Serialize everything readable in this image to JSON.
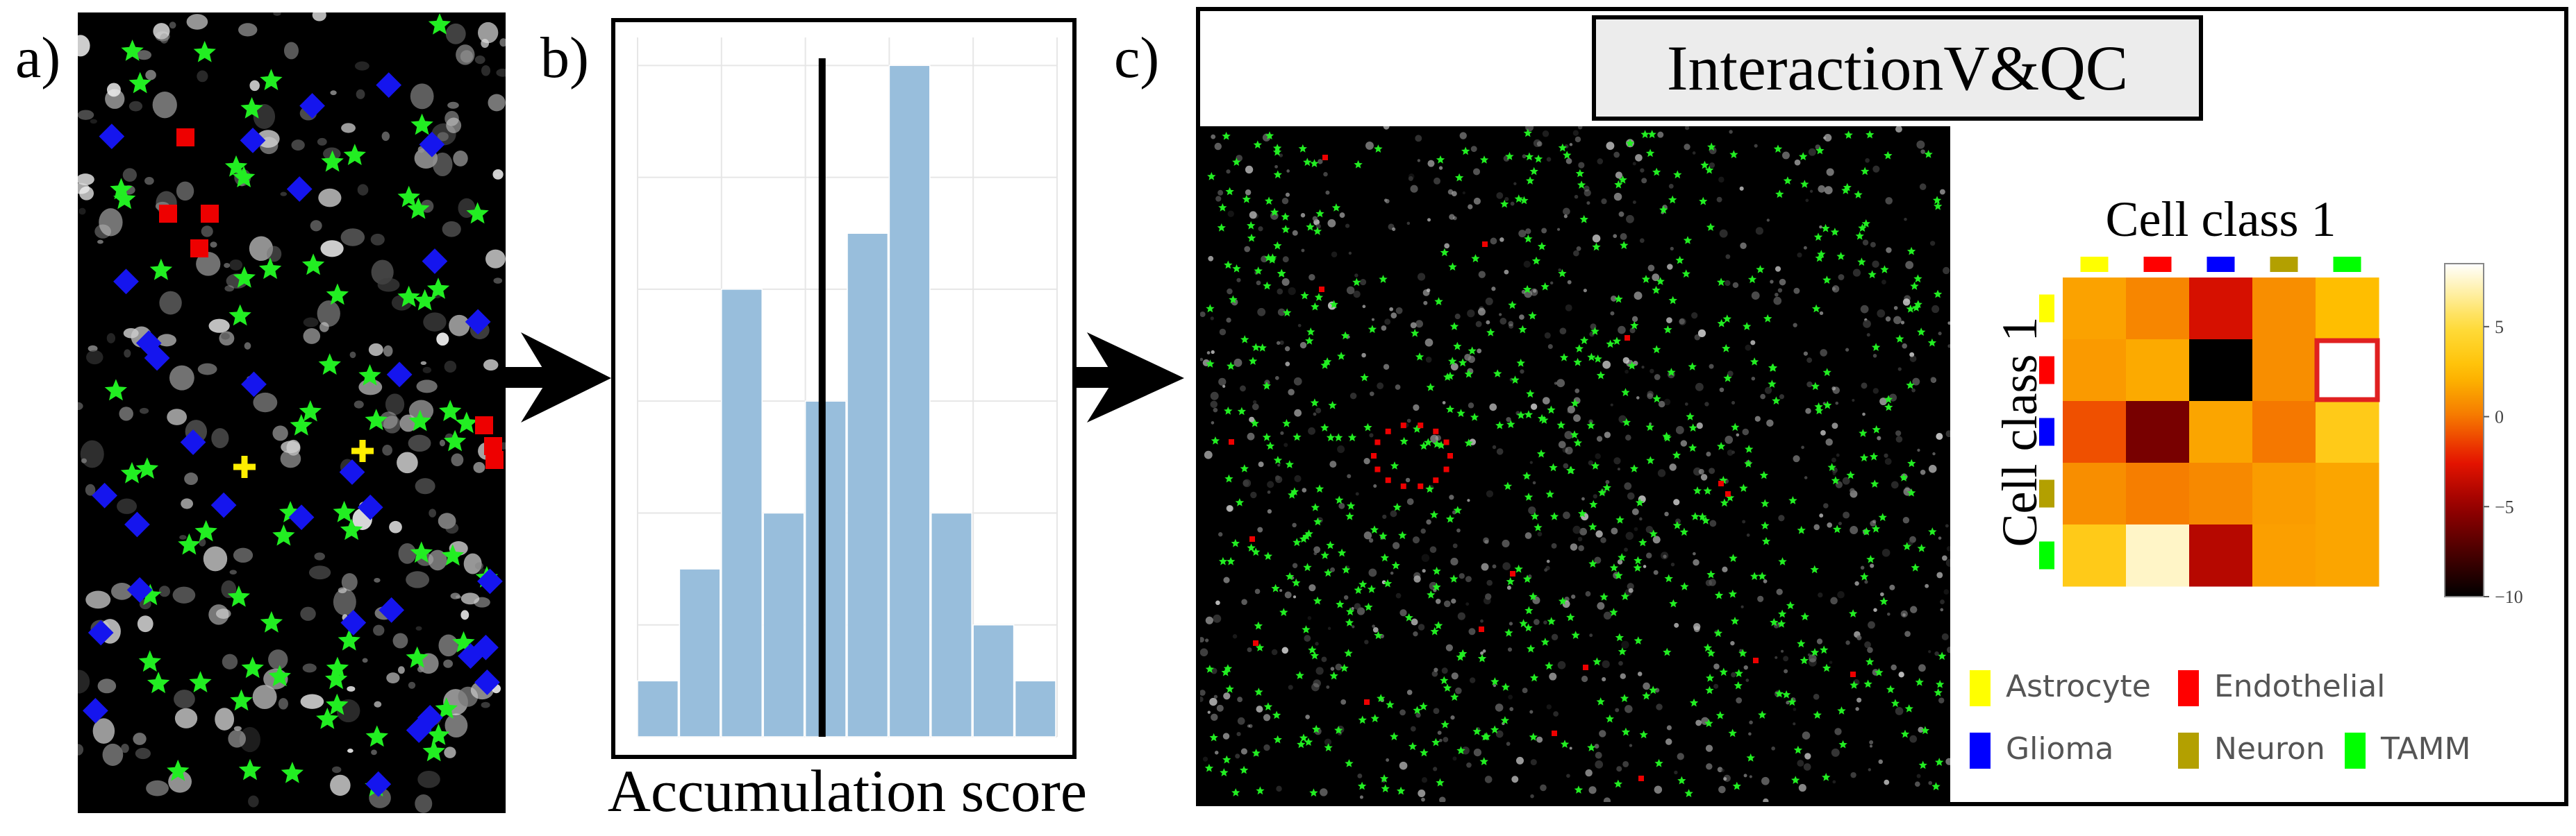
{
  "panels": {
    "a": {
      "label": "a)"
    },
    "b": {
      "label": "b)",
      "xlabel": "Accumulation score"
    },
    "c": {
      "label": "c)",
      "title": "InteractionV&QC"
    }
  },
  "chart_data": [
    {
      "type": "bar",
      "description_visible": "histogram",
      "xlabel": "Accumulation score",
      "values": [
        1,
        3,
        8,
        4,
        6,
        9,
        12,
        4,
        2,
        1
      ],
      "ylim": [
        0,
        12.5
      ],
      "vertical_line_bin": 4.4,
      "grid": true
    },
    {
      "type": "heatmap",
      "title": "Cell class 1",
      "ylabel": "Cell class 1",
      "rows": [
        "Astrocyte",
        "Endothelial",
        "Glioma",
        "Neuron",
        "TAMM"
      ],
      "cols": [
        "Astrocyte",
        "Endothelial",
        "Glioma",
        "Neuron",
        "TAMM"
      ],
      "values": [
        [
          1.5,
          0.5,
          -3.0,
          0.8,
          2.5
        ],
        [
          1.2,
          1.8,
          -10.0,
          0.8,
          8.5
        ],
        [
          -1.0,
          -6.0,
          1.6,
          0.0,
          3.5
        ],
        [
          0.8,
          0.2,
          0.6,
          1.3,
          1.6
        ],
        [
          3.5,
          7.5,
          -4.0,
          1.4,
          1.6
        ]
      ],
      "highlight_cell": [
        1,
        4
      ],
      "colorbar": {
        "min": -10,
        "max": 8.5,
        "ticks": [
          5,
          0,
          -5,
          -10
        ],
        "tick_labels": [
          "5",
          "0",
          "−5",
          "−10"
        ]
      }
    }
  ],
  "legend": [
    {
      "label": "Astrocyte",
      "color": "#ffff00"
    },
    {
      "label": "Endothelial",
      "color": "#ff0000"
    },
    {
      "label": "Glioma",
      "color": "#0000ff"
    },
    {
      "label": "Neuron",
      "color": "#b3a000"
    },
    {
      "label": "TAMM",
      "color": "#00ff00"
    }
  ],
  "colors": {
    "hist_bar": "#98bedc",
    "hist_grid": "#e6e6e6",
    "star": "#22ee22",
    "glioma": "#1515ee",
    "endothelial": "#ee0000",
    "astrocyte": "#ffee00",
    "highlight": "#e02020"
  }
}
